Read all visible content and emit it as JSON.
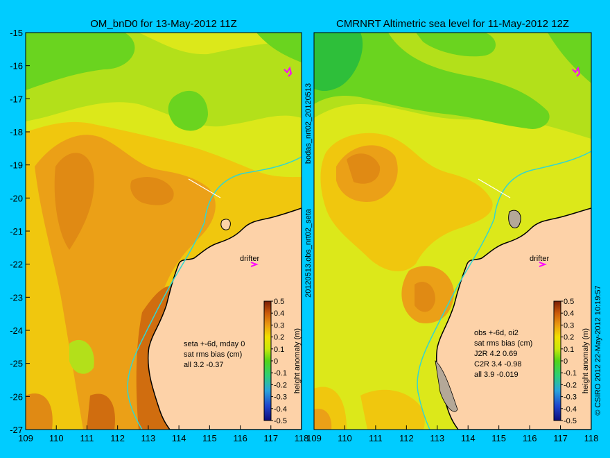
{
  "chart_data": [
    {
      "type": "heatmap",
      "title": "OM_bnD0 for 13-May-2012 11Z",
      "xlim": [
        109,
        118
      ],
      "ylim": [
        -27,
        -15
      ],
      "x_ticks": [
        "109",
        "110",
        "111",
        "112",
        "113",
        "114",
        "115",
        "116",
        "117",
        "118"
      ],
      "y_ticks": [
        "-15",
        "-16",
        "-17",
        "-18",
        "-19",
        "-20",
        "-21",
        "-22",
        "-23",
        "-24",
        "-25",
        "-26",
        "-27"
      ],
      "annotations": [
        "drifter"
      ],
      "stats": [
        "seta +-6d, mday 0",
        "sat rms bias (cm)",
        "all 3.2 -0.37"
      ]
    },
    {
      "type": "heatmap",
      "title": "CMRNRT Altimetric sea level  for 11-May-2012 12Z",
      "xlim": [
        109,
        118
      ],
      "ylim": [
        -27,
        -15
      ],
      "x_ticks": [
        "109",
        "110",
        "111",
        "112",
        "113",
        "114",
        "115",
        "116",
        "117",
        "118"
      ],
      "annotations": [
        "drifter"
      ],
      "stats": [
        "obs +-6d, oi2",
        "sat rms bias (cm)",
        "J2R   4.2 0.69",
        "C2R   3.4 -0.98",
        "all 3.9 -0.019"
      ]
    }
  ],
  "colorbar": {
    "label": "height anomaly (m)",
    "ticks": [
      "0.5",
      "0.4",
      "0.3",
      "0.2",
      "0.1",
      "0",
      "-0.1",
      "-0.2",
      "-0.3",
      "-0.4",
      "-0.5"
    ],
    "range": [
      -0.5,
      0.5
    ]
  },
  "side_labels": {
    "left_top": "bodas_nrt02_20120513",
    "left_bottom": "20120513.obs_nrt02_seta",
    "right": "© CSIRO 2012   22-May-2012 10:19:57"
  },
  "colors": {
    "background": "#00ccff",
    "land": "#fdd2a8",
    "coast": "#000000",
    "shelf_line": "#33d6cf"
  }
}
